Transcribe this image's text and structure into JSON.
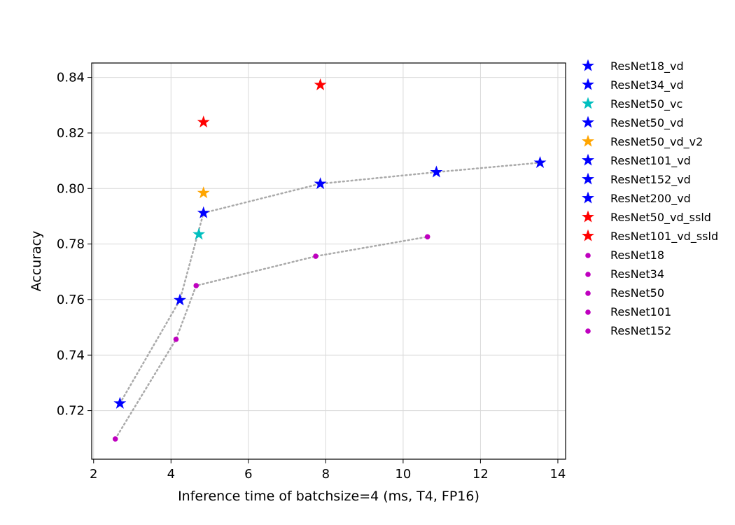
{
  "chart_data": {
    "type": "scatter",
    "title": "",
    "xlabel": "Inference time of batchsize=4 (ms, T4, FP16)",
    "ylabel": "Accuracy",
    "xlim": [
      1.95,
      14.2
    ],
    "ylim": [
      0.7025,
      0.8452
    ],
    "xticks": [
      2,
      4,
      6,
      8,
      10,
      12,
      14
    ],
    "yticks": [
      0.72,
      0.74,
      0.76,
      0.78,
      0.8,
      0.82,
      0.84
    ],
    "grid": true,
    "legend_position": "outside-right",
    "colors": {
      "blue": "#0000ff",
      "cyan": "#00bfbf",
      "orange": "#ffa500",
      "red": "#ff0000",
      "magenta": "#bf00bf",
      "trend_line": "#aaaaaa"
    },
    "series": [
      {
        "name": "ResNet18_vd",
        "marker": "star",
        "color": "#0000ff",
        "points": [
          {
            "x": 2.68,
            "y": 0.7226
          }
        ]
      },
      {
        "name": "ResNet34_vd",
        "marker": "star",
        "color": "#0000ff",
        "points": [
          {
            "x": 4.23,
            "y": 0.7598
          }
        ]
      },
      {
        "name": "ResNet50_vc",
        "marker": "star",
        "color": "#00bfbf",
        "points": [
          {
            "x": 4.72,
            "y": 0.7835
          }
        ]
      },
      {
        "name": "ResNet50_vd",
        "marker": "star",
        "color": "#0000ff",
        "points": [
          {
            "x": 4.84,
            "y": 0.7912
          }
        ]
      },
      {
        "name": "ResNet50_vd_v2",
        "marker": "star",
        "color": "#ffa500",
        "points": [
          {
            "x": 4.84,
            "y": 0.7984
          }
        ]
      },
      {
        "name": "ResNet101_vd",
        "marker": "star",
        "color": "#0000ff",
        "points": [
          {
            "x": 7.86,
            "y": 0.8017
          }
        ]
      },
      {
        "name": "ResNet152_vd",
        "marker": "star",
        "color": "#0000ff",
        "points": [
          {
            "x": 10.86,
            "y": 0.8059
          }
        ]
      },
      {
        "name": "ResNet200_vd",
        "marker": "star",
        "color": "#0000ff",
        "points": [
          {
            "x": 13.54,
            "y": 0.8093
          }
        ]
      },
      {
        "name": "ResNet50_vd_ssld",
        "marker": "star",
        "color": "#ff0000",
        "points": [
          {
            "x": 4.84,
            "y": 0.8239
          }
        ]
      },
      {
        "name": "ResNet101_vd_ssld",
        "marker": "star",
        "color": "#ff0000",
        "points": [
          {
            "x": 7.86,
            "y": 0.8373
          }
        ]
      },
      {
        "name": "ResNet18",
        "marker": "dot",
        "color": "#bf00bf",
        "points": [
          {
            "x": 2.56,
            "y": 0.7098
          }
        ]
      },
      {
        "name": "ResNet34",
        "marker": "dot",
        "color": "#bf00bf",
        "points": [
          {
            "x": 4.13,
            "y": 0.7457
          }
        ]
      },
      {
        "name": "ResNet50",
        "marker": "dot",
        "color": "#bf00bf",
        "points": [
          {
            "x": 4.65,
            "y": 0.765
          }
        ]
      },
      {
        "name": "ResNet101",
        "marker": "dot",
        "color": "#bf00bf",
        "points": [
          {
            "x": 7.74,
            "y": 0.7756
          }
        ]
      },
      {
        "name": "ResNet152",
        "marker": "dot",
        "color": "#bf00bf",
        "points": [
          {
            "x": 10.63,
            "y": 0.7826
          }
        ]
      }
    ],
    "trend_lines": [
      {
        "points": [
          {
            "x": 2.68,
            "y": 0.7226
          },
          {
            "x": 4.23,
            "y": 0.7598
          },
          {
            "x": 4.84,
            "y": 0.7912
          },
          {
            "x": 7.86,
            "y": 0.8017
          },
          {
            "x": 10.86,
            "y": 0.8059
          },
          {
            "x": 13.54,
            "y": 0.8093
          }
        ]
      },
      {
        "points": [
          {
            "x": 2.56,
            "y": 0.7098
          },
          {
            "x": 4.13,
            "y": 0.7457
          },
          {
            "x": 4.65,
            "y": 0.765
          },
          {
            "x": 7.74,
            "y": 0.7756
          },
          {
            "x": 10.63,
            "y": 0.7826
          }
        ]
      }
    ]
  }
}
